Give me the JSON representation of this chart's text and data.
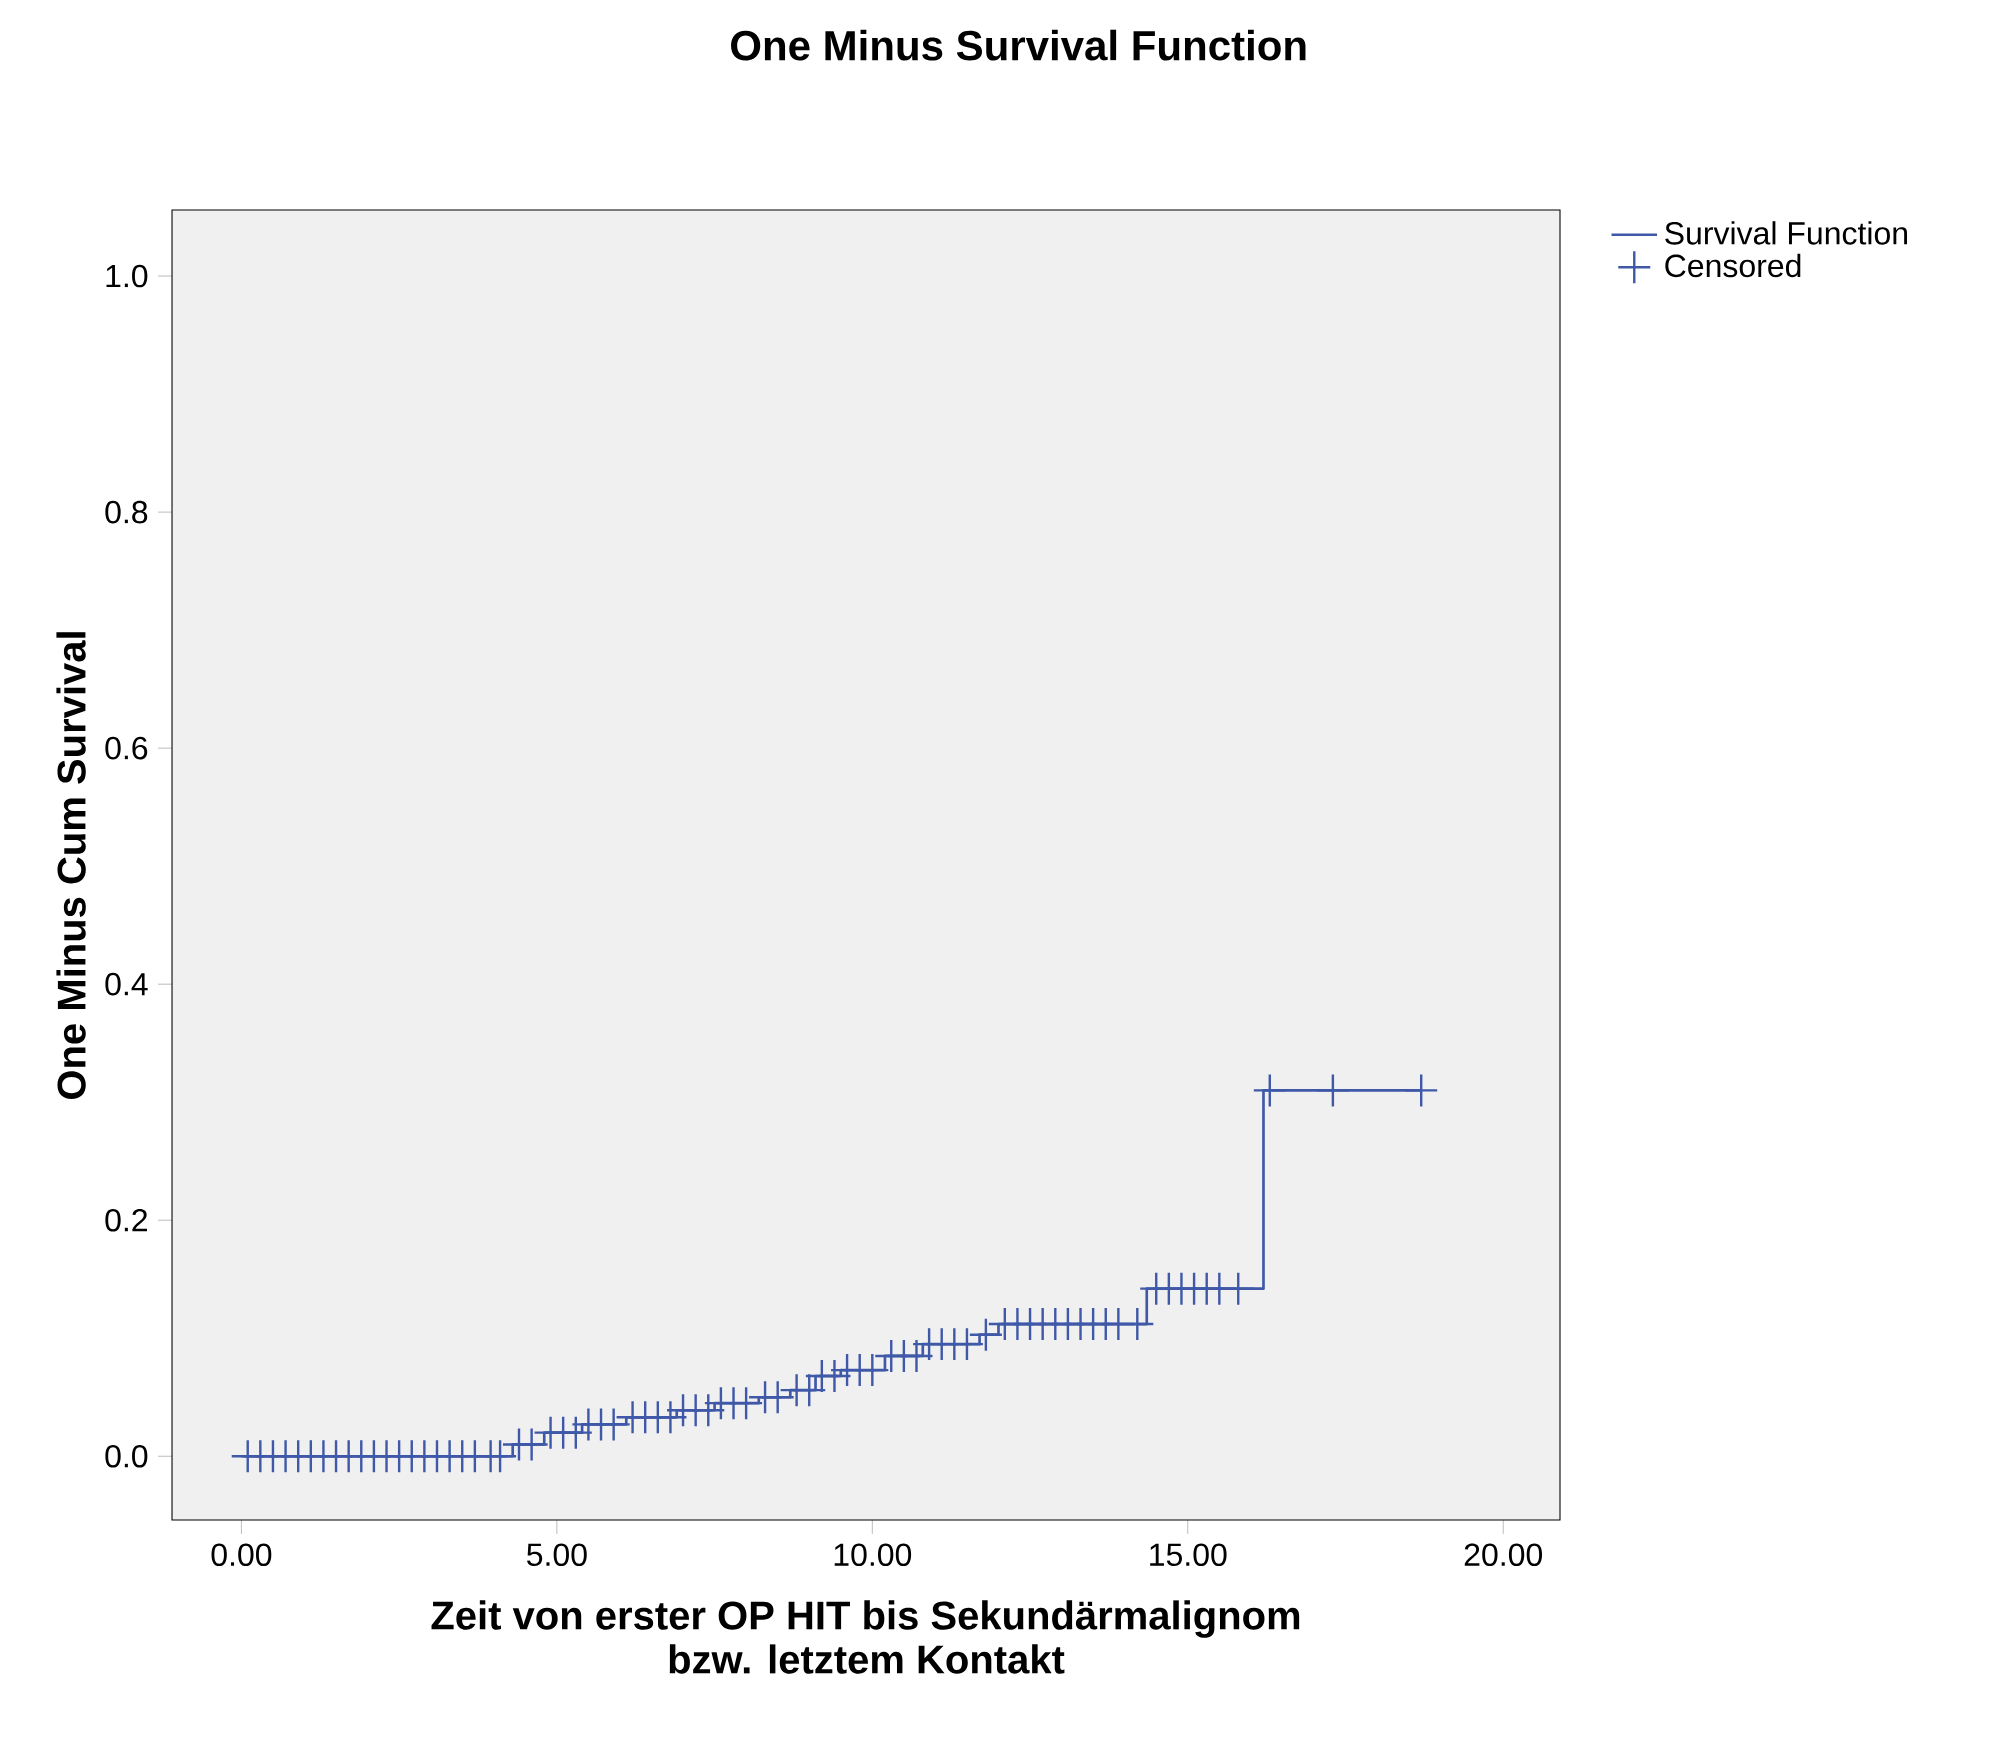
{
  "chart_data": {
    "type": "step",
    "title": "One Minus Survival Function",
    "xlabel": "Zeit von erster OP HIT bis Sekundärmalignom\nbzw. letztem Kontakt",
    "ylabel": "One Minus Cum Survival",
    "xlim": [
      -1.1,
      20.9
    ],
    "ylim": [
      -0.054,
      1.056
    ],
    "xticks": [
      {
        "value": 0,
        "label": "0.00"
      },
      {
        "value": 5,
        "label": "5.00"
      },
      {
        "value": 10,
        "label": "10.00"
      },
      {
        "value": 15,
        "label": "15.00"
      },
      {
        "value": 20,
        "label": "20.00"
      }
    ],
    "yticks": [
      {
        "value": 0,
        "label": "0.0"
      },
      {
        "value": 0.2,
        "label": "0.2"
      },
      {
        "value": 0.4,
        "label": "0.4"
      },
      {
        "value": 0.6,
        "label": "0.6"
      },
      {
        "value": 0.8,
        "label": "0.8"
      },
      {
        "value": 1,
        "label": "1.0"
      }
    ],
    "grid": false,
    "legend": "top right",
    "series": [
      {
        "name": "Survival Function",
        "color": "#3f58a8",
        "x": [
          0,
          4.3,
          4.8,
          5.4,
          6.1,
          6.9,
          7.5,
          8.2,
          8.7,
          9.1,
          9.5,
          10.2,
          10.8,
          11.7,
          12.0,
          14.35,
          16.2,
          18.7
        ],
        "values": [
          0,
          0.01,
          0.02,
          0.027,
          0.033,
          0.039,
          0.045,
          0.05,
          0.056,
          0.068,
          0.073,
          0.085,
          0.095,
          0.103,
          0.112,
          0.142,
          0.31,
          0.31
        ]
      },
      {
        "name": "Censored",
        "type": "scatter",
        "marker": "cross",
        "color": "#3f58a8",
        "x": [
          0.1,
          0.3,
          0.5,
          0.7,
          0.9,
          1.1,
          1.3,
          1.5,
          1.7,
          1.9,
          2.1,
          2.3,
          2.5,
          2.7,
          2.9,
          3.1,
          3.3,
          3.5,
          3.7,
          3.95,
          4.1,
          4.4,
          4.6,
          4.9,
          5.1,
          5.3,
          5.5,
          5.7,
          5.9,
          6.2,
          6.4,
          6.6,
          6.8,
          7.0,
          7.2,
          7.4,
          7.6,
          7.8,
          8.0,
          8.3,
          8.5,
          8.8,
          9.0,
          9.2,
          9.4,
          9.6,
          9.8,
          10.0,
          10.3,
          10.5,
          10.7,
          10.9,
          11.1,
          11.3,
          11.5,
          11.8,
          12.1,
          12.3,
          12.5,
          12.7,
          12.9,
          13.1,
          13.3,
          13.5,
          13.7,
          13.9,
          14.2,
          14.5,
          14.7,
          14.9,
          15.1,
          15.3,
          15.5,
          15.8,
          16.3,
          17.3,
          18.7
        ],
        "values": [
          0,
          0,
          0,
          0,
          0,
          0,
          0,
          0,
          0,
          0,
          0,
          0,
          0,
          0,
          0,
          0,
          0,
          0,
          0,
          0,
          0,
          0.01,
          0.01,
          0.02,
          0.02,
          0.02,
          0.027,
          0.027,
          0.027,
          0.033,
          0.033,
          0.033,
          0.033,
          0.039,
          0.039,
          0.039,
          0.045,
          0.045,
          0.045,
          0.05,
          0.05,
          0.056,
          0.056,
          0.068,
          0.068,
          0.073,
          0.073,
          0.073,
          0.085,
          0.085,
          0.085,
          0.095,
          0.095,
          0.095,
          0.095,
          0.103,
          0.112,
          0.112,
          0.112,
          0.112,
          0.112,
          0.112,
          0.112,
          0.112,
          0.112,
          0.112,
          0.112,
          0.142,
          0.142,
          0.142,
          0.142,
          0.142,
          0.142,
          0.142,
          0.31,
          0.31,
          0.31
        ]
      }
    ]
  }
}
